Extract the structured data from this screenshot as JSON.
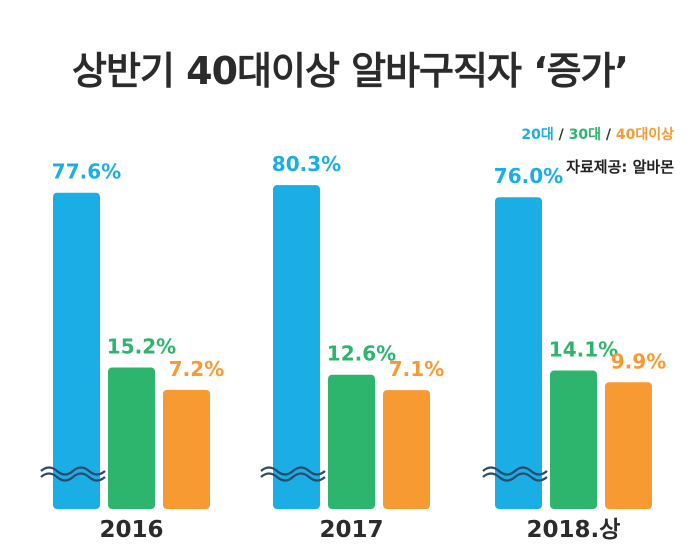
{
  "title": "상반기 40대이상 알바구직자 ‘증가’",
  "legend": {
    "items": [
      "20대",
      "30대",
      "40대이상"
    ],
    "separator": " / "
  },
  "source": "자료제공: 알바몬",
  "colors": {
    "20대": "#1aaee5",
    "30대": "#2db56d",
    "40대이상": "#f79a32",
    "title": "#2b2b2b"
  },
  "chart_data": {
    "type": "bar",
    "title": "상반기 40대이상 알바구직자 ‘증가’",
    "categories": [
      "2016",
      "2017",
      "2018.상"
    ],
    "series": [
      {
        "name": "20대",
        "values": [
          77.6,
          80.3,
          76.0
        ],
        "labels": [
          "77.6%",
          "80.3%",
          "76.0%"
        ]
      },
      {
        "name": "30대",
        "values": [
          15.2,
          12.6,
          14.1
        ],
        "labels": [
          "15.2%",
          "12.6%",
          "14.1%"
        ]
      },
      {
        "name": "40대이상",
        "values": [
          7.2,
          7.1,
          9.9
        ],
        "labels": [
          "7.2%",
          "7.1%",
          "9.9%"
        ]
      }
    ],
    "axis_break": true,
    "grid": false,
    "legend_position": "top-right"
  }
}
